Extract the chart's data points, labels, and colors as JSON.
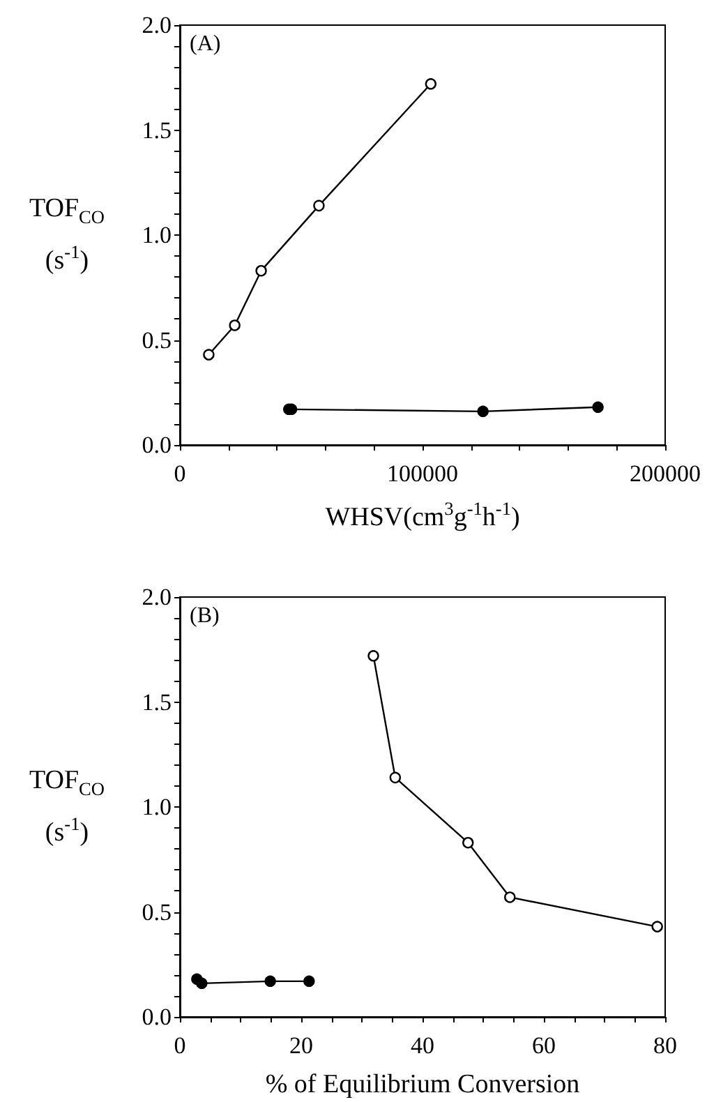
{
  "chart_data": [
    {
      "type": "line",
      "xlabel": "WHSV(cm$^{3}$g$^{-1}$h$^{-1}$)",
      "ylabel": "TOF$_{CO}$ (s$^{-1}$)",
      "annotations": [
        "(A)"
      ],
      "series": [
        {
          "color": "#000000",
          "x": [
            11900,
            22600,
            33500,
            57300,
            103400
          ],
          "values": [
            0.43,
            0.57,
            0.83,
            1.14,
            1.72
          ]
        },
        {
          "color": "#000000",
          "x": [
            44900,
            46000,
            124900,
            172300
          ],
          "values": [
            0.17,
            0.17,
            0.16,
            0.18
          ]
        }
      ],
      "xlim": [
        0,
        200000
      ],
      "xticks": [
        0,
        {
          "value": 20000,
          "label": null
        },
        {
          "value": 40000,
          "label": null
        },
        {
          "value": 60000,
          "label": null
        },
        {
          "value": 80000,
          "label": null
        },
        100000,
        {
          "value": 120000,
          "label": null
        },
        {
          "value": 140000,
          "label": null
        },
        {
          "value": 160000,
          "label": null
        },
        {
          "value": 180000,
          "label": null
        },
        200000
      ],
      "ylim": [
        0,
        2.0
      ],
      "yticks": [
        {
          "value": 0,
          "label": "0.0"
        },
        {
          "value": 0.1,
          "label": null
        },
        {
          "value": 0.2,
          "label": null
        },
        {
          "value": 0.3,
          "label": null
        },
        {
          "value": 0.4,
          "label": null
        },
        {
          "value": 0.5,
          "label": "0.5"
        },
        {
          "value": 0.6,
          "label": null
        },
        {
          "value": 0.7,
          "label": null
        },
        {
          "value": 0.8,
          "label": null
        },
        {
          "value": 0.9,
          "label": null
        },
        {
          "value": 1.0,
          "label": "1.0"
        },
        {
          "value": 1.1,
          "label": null
        },
        {
          "value": 1.2,
          "label": null
        },
        {
          "value": 1.3,
          "label": null
        },
        {
          "value": 1.4,
          "label": null
        },
        {
          "value": 1.5,
          "label": "1.5"
        },
        {
          "value": 1.6,
          "label": null
        },
        {
          "value": 1.7,
          "label": null
        },
        {
          "value": 1.8,
          "label": null
        },
        {
          "value": 1.9,
          "label": null
        },
        {
          "value": 2.0,
          "label": "2.0"
        }
      ],
      "marker": "circle",
      "line_style": "solid",
      "grid": false
    },
    {
      "type": "line",
      "xlabel": "% of Equilibrium Conversion",
      "ylabel": "TOF$_{CO}$ (s$^{-1}$)",
      "annotations": [
        "(B)"
      ],
      "series": [
        {
          "color": "#000000",
          "x": [
            31.9,
            35.5,
            47.5,
            54.4,
            78.7
          ],
          "values": [
            1.72,
            1.14,
            0.83,
            0.57,
            0.43
          ]
        },
        {
          "color": "#000000",
          "x": [
            2.8,
            3.6,
            14.9,
            21.3
          ],
          "values": [
            0.18,
            0.16,
            0.17,
            0.17
          ]
        }
      ],
      "xlim": [
        0,
        80
      ],
      "xticks": [
        0,
        {
          "value": 5,
          "label": null
        },
        {
          "value": 10,
          "label": null
        },
        {
          "value": 15,
          "label": null
        },
        20,
        {
          "value": 25,
          "label": null
        },
        {
          "value": 30,
          "label": null
        },
        {
          "value": 35,
          "label": null
        },
        40,
        {
          "value": 45,
          "label": null
        },
        {
          "value": 50,
          "label": null
        },
        {
          "value": 55,
          "label": null
        },
        60,
        {
          "value": 65,
          "label": null
        },
        {
          "value": 70,
          "label": null
        },
        {
          "value": 75,
          "label": null
        },
        80
      ],
      "ylim": [
        0,
        2.0
      ],
      "yticks": [
        {
          "value": 0,
          "label": "0.0"
        },
        {
          "value": 0.1,
          "label": null
        },
        {
          "value": 0.2,
          "label": null
        },
        {
          "value": 0.3,
          "label": null
        },
        {
          "value": 0.4,
          "label": null
        },
        {
          "value": 0.5,
          "label": "0.5"
        },
        {
          "value": 0.6,
          "label": null
        },
        {
          "value": 0.7,
          "label": null
        },
        {
          "value": 0.8,
          "label": null
        },
        {
          "value": 0.9,
          "label": null
        },
        {
          "value": 1.0,
          "label": "1.0"
        },
        {
          "value": 1.1,
          "label": null
        },
        {
          "value": 1.2,
          "label": null
        },
        {
          "value": 1.3,
          "label": null
        },
        {
          "value": 1.4,
          "label": null
        },
        {
          "value": 1.5,
          "label": "1.5"
        },
        {
          "value": 1.6,
          "label": null
        },
        {
          "value": 1.7,
          "label": null
        },
        {
          "value": 1.8,
          "label": null
        },
        {
          "value": 1.9,
          "label": null
        },
        {
          "value": 2.0,
          "label": "2.0"
        }
      ],
      "marker": "circle",
      "line_style": "solid",
      "grid": false
    }
  ]
}
